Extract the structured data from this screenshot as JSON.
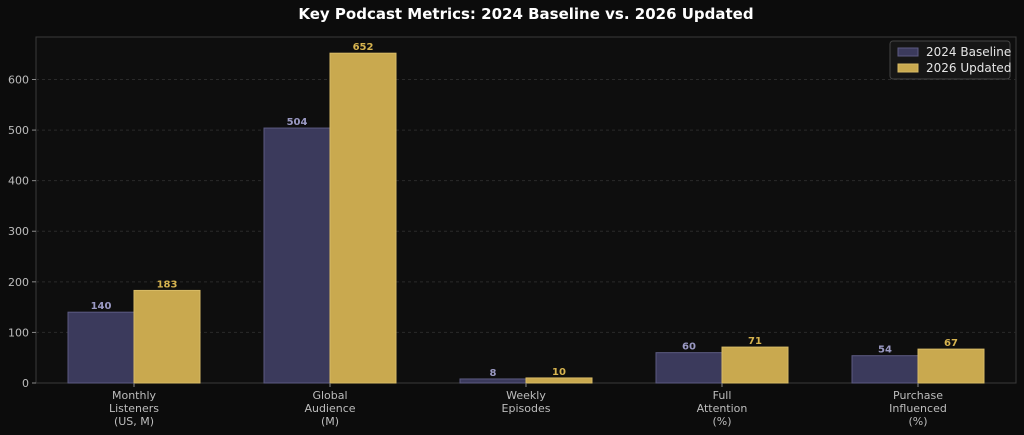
{
  "chart_data": {
    "type": "bar",
    "title": "Key Podcast Metrics: 2024 Baseline vs. 2026 Updated",
    "xlabel": "",
    "ylabel": "",
    "categories": [
      [
        "Monthly",
        "Listeners",
        "(US, M)"
      ],
      [
        "Global",
        "Audience",
        "(M)"
      ],
      [
        "Weekly",
        "Episodes"
      ],
      [
        "Full",
        "Attention",
        "(%)"
      ],
      [
        "Purchase",
        "Influenced",
        "(%)"
      ]
    ],
    "series": [
      {
        "name": "2024 Baseline",
        "values": [
          140,
          504,
          8,
          60,
          54
        ],
        "color": "#3b3a5c",
        "edge": "#5c5b82",
        "label_color": "#9b9ac4"
      },
      {
        "name": "2026 Updated",
        "values": [
          183,
          652,
          10,
          71,
          67
        ],
        "color": "#c9a94f",
        "edge": "#d8bb66",
        "label_color": "#d6b34f"
      }
    ],
    "ylim": [
      0,
      684
    ],
    "yticks": [
      0,
      100,
      200,
      300,
      400,
      500,
      600
    ],
    "grid": true,
    "legend": "top-right"
  }
}
